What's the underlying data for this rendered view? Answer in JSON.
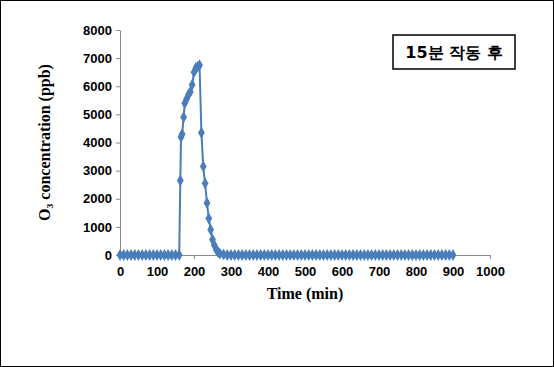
{
  "chart_data": {
    "type": "line",
    "x_label": "Time (min)",
    "y_label": "O₃ concentration (ppb)",
    "annotation": "15분 작동 후",
    "color": "#4a7ebb",
    "marker": "diamond",
    "x": [
      0,
      10,
      20,
      30,
      40,
      50,
      60,
      70,
      80,
      90,
      100,
      110,
      120,
      130,
      140,
      150,
      160,
      163,
      165,
      168,
      172,
      175,
      180,
      185,
      190,
      195,
      200,
      205,
      210,
      215,
      220,
      225,
      230,
      235,
      240,
      245,
      250,
      255,
      260,
      265,
      270,
      280,
      290,
      300,
      310,
      320,
      330,
      340,
      350,
      360,
      370,
      380,
      390,
      400,
      410,
      420,
      430,
      440,
      450,
      460,
      470,
      480,
      490,
      500,
      510,
      520,
      530,
      540,
      550,
      560,
      570,
      580,
      590,
      600,
      610,
      620,
      630,
      640,
      650,
      660,
      670,
      680,
      690,
      700,
      710,
      720,
      730,
      740,
      750,
      760,
      770,
      780,
      790,
      800,
      810,
      820,
      830,
      840,
      850,
      860,
      870,
      880,
      890,
      900
    ],
    "values": [
      0,
      0,
      0,
      0,
      0,
      0,
      0,
      0,
      0,
      0,
      0,
      0,
      0,
      0,
      0,
      0,
      0,
      2650,
      4200,
      4300,
      4900,
      5400,
      5550,
      5700,
      5800,
      6050,
      6500,
      6650,
      6700,
      6750,
      4350,
      3150,
      2550,
      1850,
      1300,
      900,
      550,
      350,
      200,
      100,
      50,
      20,
      0,
      0,
      0,
      0,
      0,
      0,
      0,
      0,
      0,
      0,
      0,
      0,
      0,
      0,
      0,
      0,
      0,
      0,
      0,
      0,
      0,
      0,
      0,
      0,
      0,
      0,
      0,
      0,
      0,
      0,
      0,
      0,
      0,
      0,
      0,
      0,
      0,
      0,
      0,
      0,
      0,
      0,
      0,
      0,
      0,
      0,
      0,
      0,
      0,
      0,
      0,
      0,
      0,
      0,
      0,
      0,
      0,
      0,
      0,
      0,
      0,
      0
    ],
    "xlim": [
      0,
      1000
    ],
    "xticks": [
      0,
      100,
      200,
      300,
      400,
      500,
      600,
      700,
      800,
      900,
      1000
    ],
    "ylim": [
      0,
      8000
    ],
    "yticks": [
      0,
      1000,
      2000,
      3000,
      4000,
      5000,
      6000,
      7000,
      8000
    ],
    "grid": false
  }
}
